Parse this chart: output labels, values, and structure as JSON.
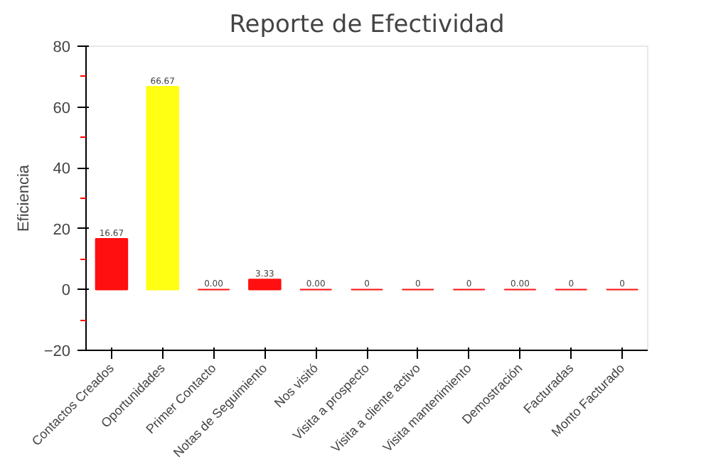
{
  "chart_data": {
    "type": "bar",
    "title": "Reporte de Efectividad",
    "ylabel": "Eficiencia",
    "categories": [
      "Contactos Creados",
      "Oportunidades",
      "Primer Contacto",
      "Notas de Seguimiento",
      "Nos visitó",
      "Visita a prospecto",
      "Visita a cliente activo",
      "Visita mantenimiento",
      "Demostración",
      "Facturadas",
      "Monto Facturado"
    ],
    "values": [
      16.67,
      66.67,
      0,
      3.33,
      0,
      0,
      0,
      0,
      0,
      0,
      0
    ],
    "colors": [
      "#ff0f0f",
      "#ffff14",
      "#ff0f0f",
      "#ff0f0f",
      "#ff0f0f",
      "#ff0f0f",
      "#ff0f0f",
      "#ff0f0f",
      "#ff0f0f",
      "#ff0f0f",
      "#ff0f0f"
    ],
    "value_labels": [
      "16.67",
      "66.67",
      "0.00",
      "3.33",
      "0.00",
      "0",
      "0",
      "0",
      "0.00",
      "0",
      "0"
    ],
    "ylim": [
      -20,
      80
    ],
    "yticks": [
      -20,
      0,
      20,
      40,
      60,
      80
    ],
    "grid": false
  }
}
